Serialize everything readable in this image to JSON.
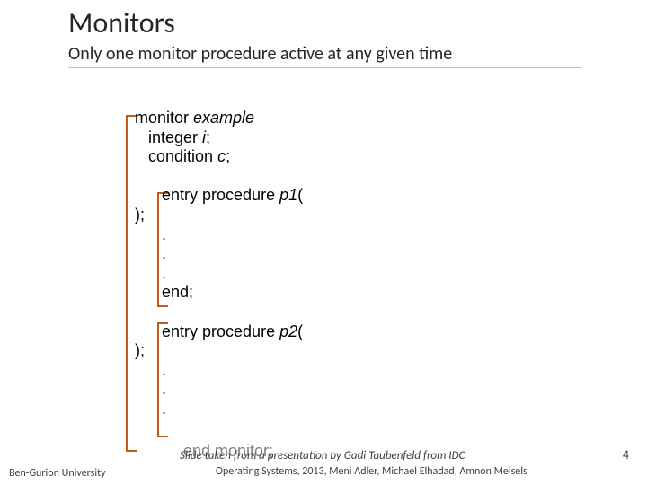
{
  "title": "Monitors",
  "subtitle": "Only one monitor procedure active at any given time",
  "code": {
    "l1a": "monitor ",
    "l1b": "example",
    "l2a": "   integer ",
    "l2b": "i",
    "l2c": ";",
    "l3a": "   condition ",
    "l3b": "c",
    "l3c": ";",
    "p1a": "      entry procedure ",
    "p1b": "p1",
    "p1c": "(",
    "p1d": ");",
    "dot": "      .",
    "end": "      end;",
    "p2a": "      entry procedure ",
    "p2b": "p2",
    "p2c": "(",
    "p2d": ");",
    "endmon": "end monitor;"
  },
  "footer": {
    "left": "Ben-Gurion University",
    "center": "Slide taken from a presentation by Gadi Taubenfeld from IDC",
    "sub": "Operating Systems, 2013, Meni Adler, Michael Elhadad, Amnon Meisels",
    "page": "4"
  },
  "colors": {
    "bracket": "#c55a11",
    "text": "#262626"
  }
}
